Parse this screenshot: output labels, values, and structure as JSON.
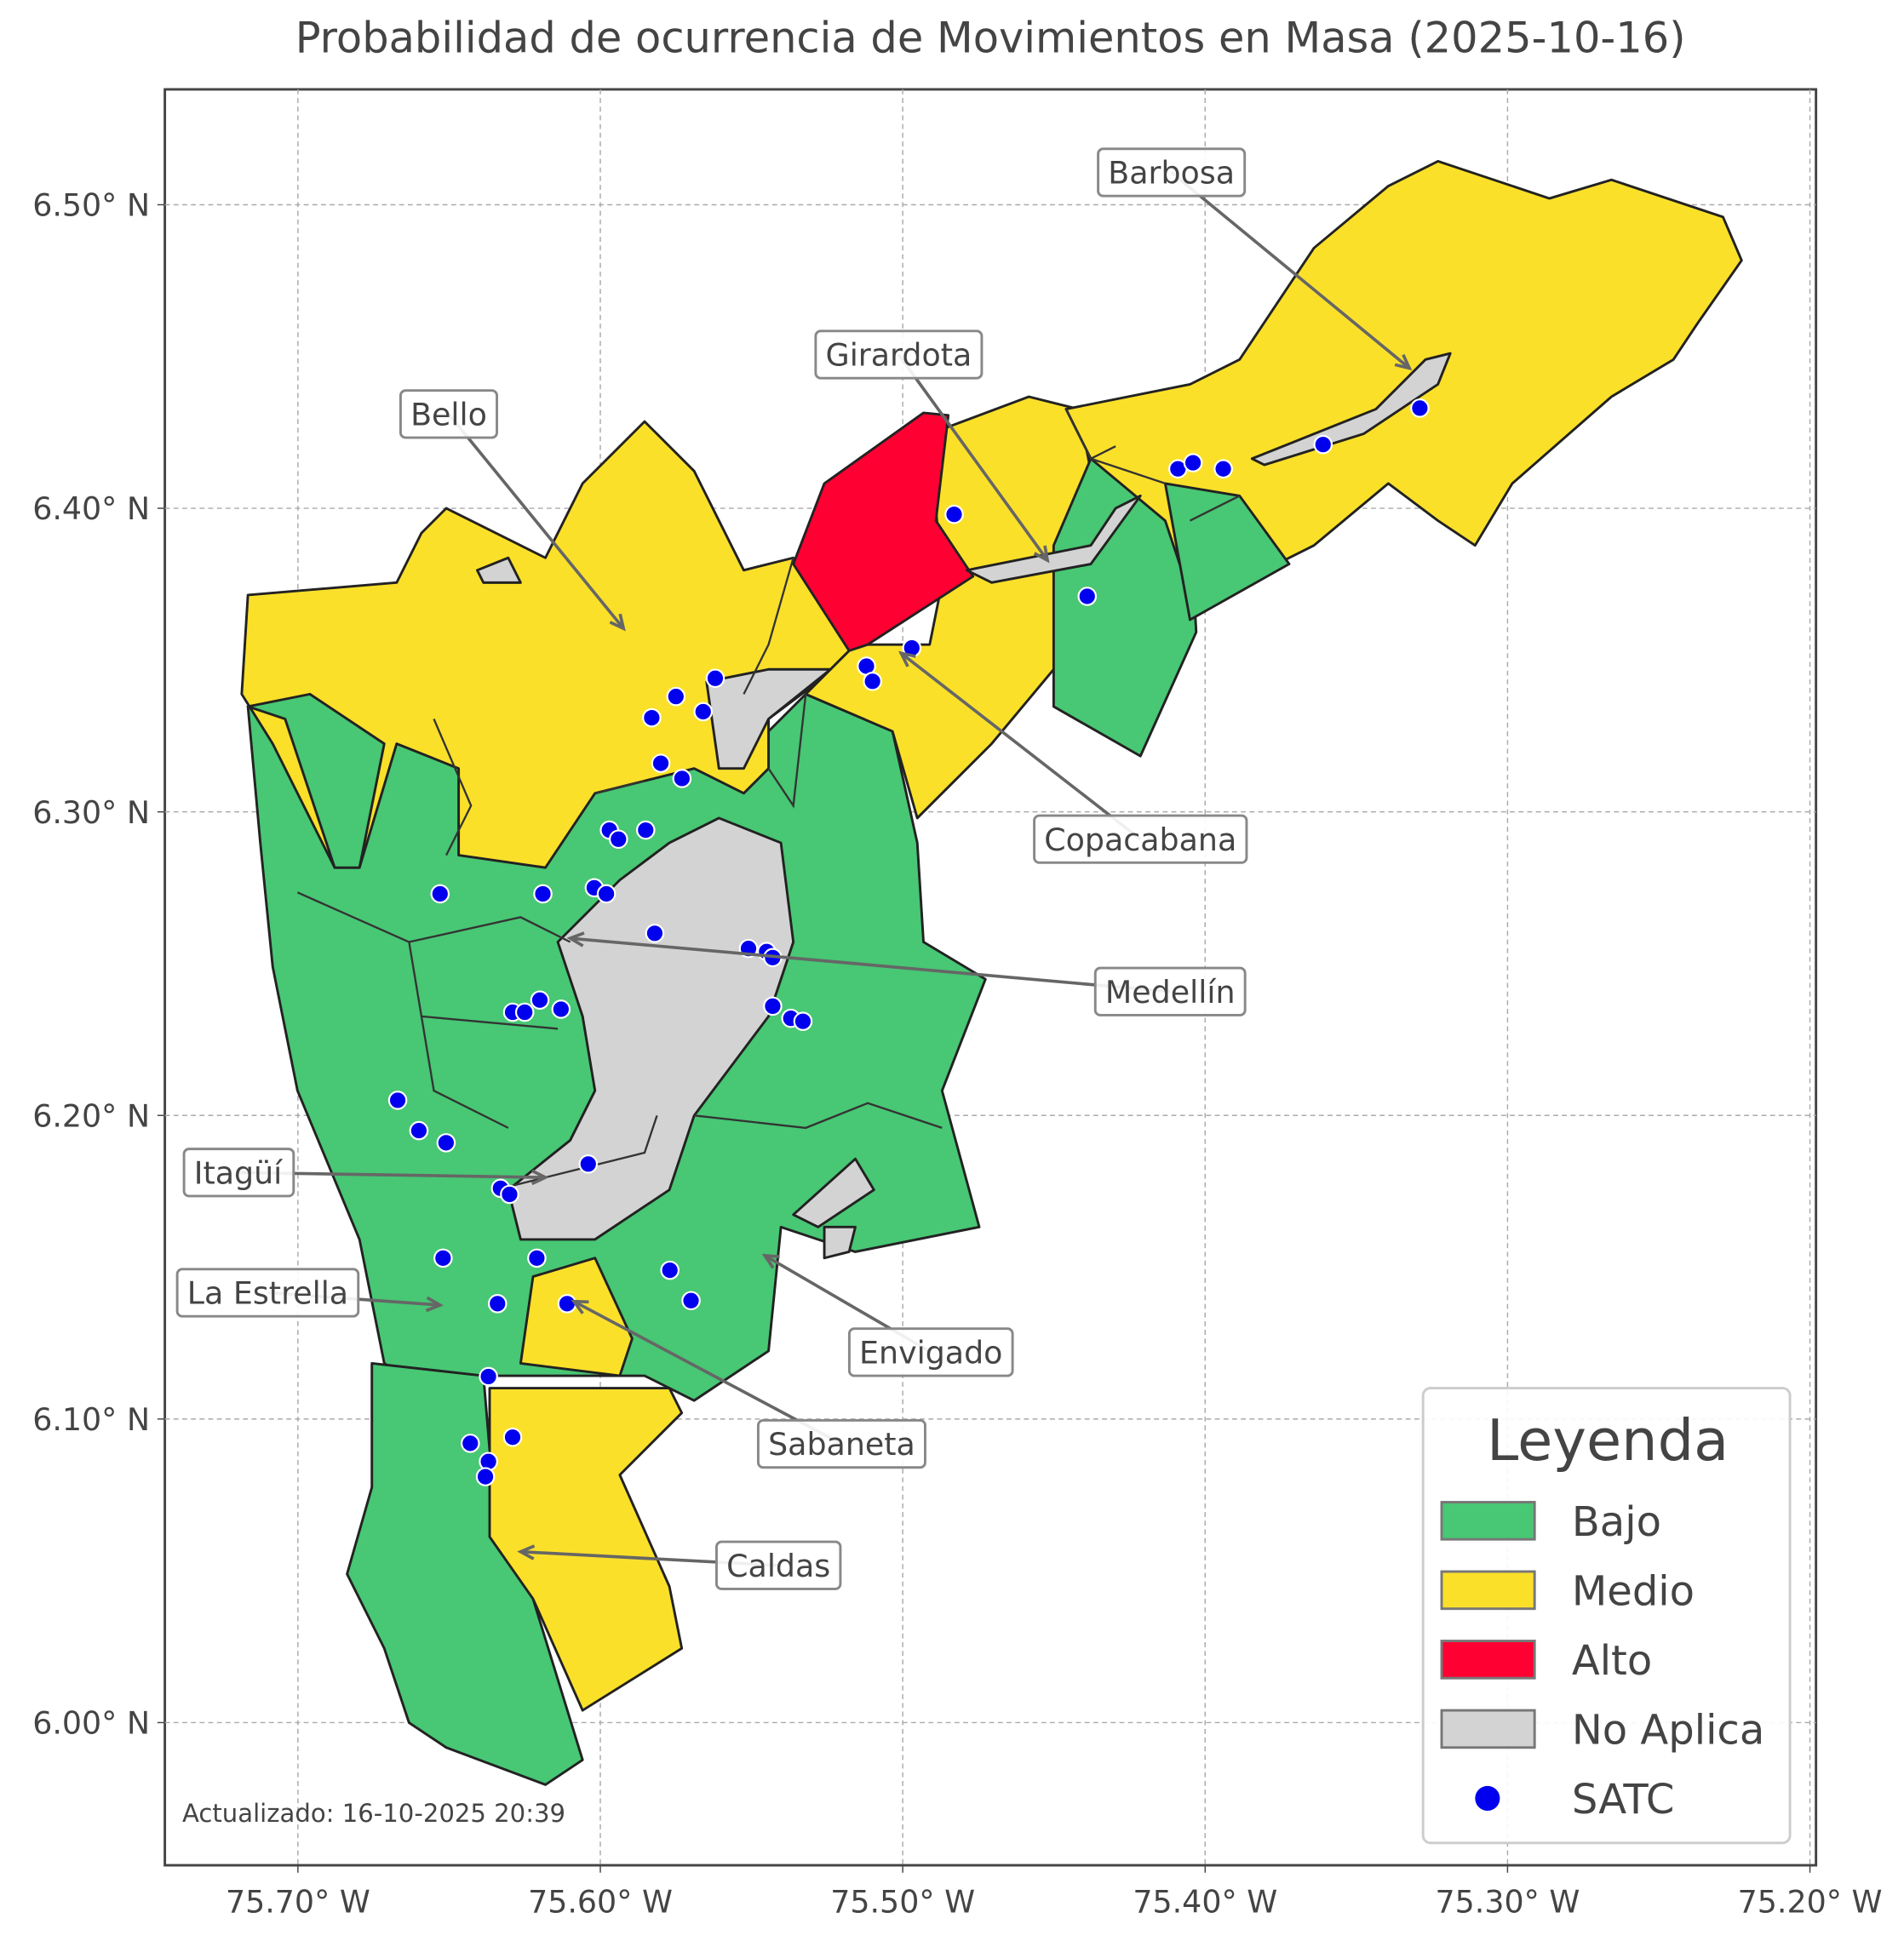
{
  "chart_data": {
    "type": "map",
    "title": "Probabilidad de ocurrencia de Movimientos en Masa (2025-10-16)",
    "xlim": [
      -75.744,
      -75.198
    ],
    "ylim": [
      5.953,
      6.538
    ],
    "xticks": [
      {
        "value": -75.7,
        "label": "75.70° W"
      },
      {
        "value": -75.6,
        "label": "75.60° W"
      },
      {
        "value": -75.5,
        "label": "75.50° W"
      },
      {
        "value": -75.4,
        "label": "75.40° W"
      },
      {
        "value": -75.3,
        "label": "75.30° W"
      },
      {
        "value": -75.2,
        "label": "75.20° W"
      }
    ],
    "yticks": [
      {
        "value": 6.0,
        "label": "6.00° N"
      },
      {
        "value": 6.1,
        "label": "6.10° N"
      },
      {
        "value": 6.2,
        "label": "6.20° N"
      },
      {
        "value": 6.3,
        "label": "6.30° N"
      },
      {
        "value": 6.4,
        "label": "6.40° N"
      },
      {
        "value": 6.5,
        "label": "6.50° N"
      }
    ],
    "grid": true,
    "legend": {
      "title": "Leyenda",
      "entries": [
        {
          "label": "Bajo",
          "color": "#48c774"
        },
        {
          "label": "Medio",
          "color": "#fbe02a"
        },
        {
          "label": "Alto",
          "color": "#ff0033"
        },
        {
          "label": "No Aplica",
          "color": "#d3d3d3"
        }
      ]
    },
    "points": {
      "name": "SATC",
      "color": "#0000ee",
      "lon": [
        -75.483,
        -75.409,
        -75.404,
        -75.394,
        -75.361,
        -75.329,
        -75.439,
        -75.497,
        -75.512,
        -75.51,
        -75.562,
        -75.575,
        -75.566,
        -75.583,
        -75.58,
        -75.573,
        -75.597,
        -75.585,
        -75.594,
        -75.653,
        -75.619,
        -75.602,
        -75.598,
        -75.582,
        -75.551,
        -75.545,
        -75.543,
        -75.543,
        -75.537,
        -75.533,
        -75.62,
        -75.629,
        -75.625,
        -75.613,
        -75.667,
        -75.66,
        -75.651,
        -75.604,
        -75.633,
        -75.63,
        -75.652,
        -75.621,
        -75.577,
        -75.57,
        -75.611,
        -75.634,
        -75.637,
        -75.643,
        -75.629,
        -75.637,
        -75.638
      ],
      "lat": [
        6.398,
        6.413,
        6.415,
        6.413,
        6.421,
        6.433,
        6.371,
        6.354,
        6.348,
        6.343,
        6.344,
        6.338,
        6.333,
        6.331,
        6.316,
        6.311,
        6.294,
        6.294,
        6.291,
        6.273,
        6.273,
        6.275,
        6.273,
        6.26,
        6.255,
        6.254,
        6.252,
        6.236,
        6.232,
        6.231,
        6.238,
        6.234,
        6.234,
        6.235,
        6.205,
        6.195,
        6.191,
        6.184,
        6.176,
        6.174,
        6.153,
        6.153,
        6.149,
        6.139,
        6.138,
        6.138,
        6.114,
        6.092,
        6.094,
        6.086,
        6.081
      ]
    },
    "annotations": [
      "Barbosa",
      "Girardota",
      "Bello",
      "Copacabana",
      "Medellín",
      "Itagüí",
      "La Estrella",
      "Envigado",
      "Sabaneta",
      "Caldas"
    ],
    "footnote": "Actualizado: 16-10-2025 20:39"
  }
}
